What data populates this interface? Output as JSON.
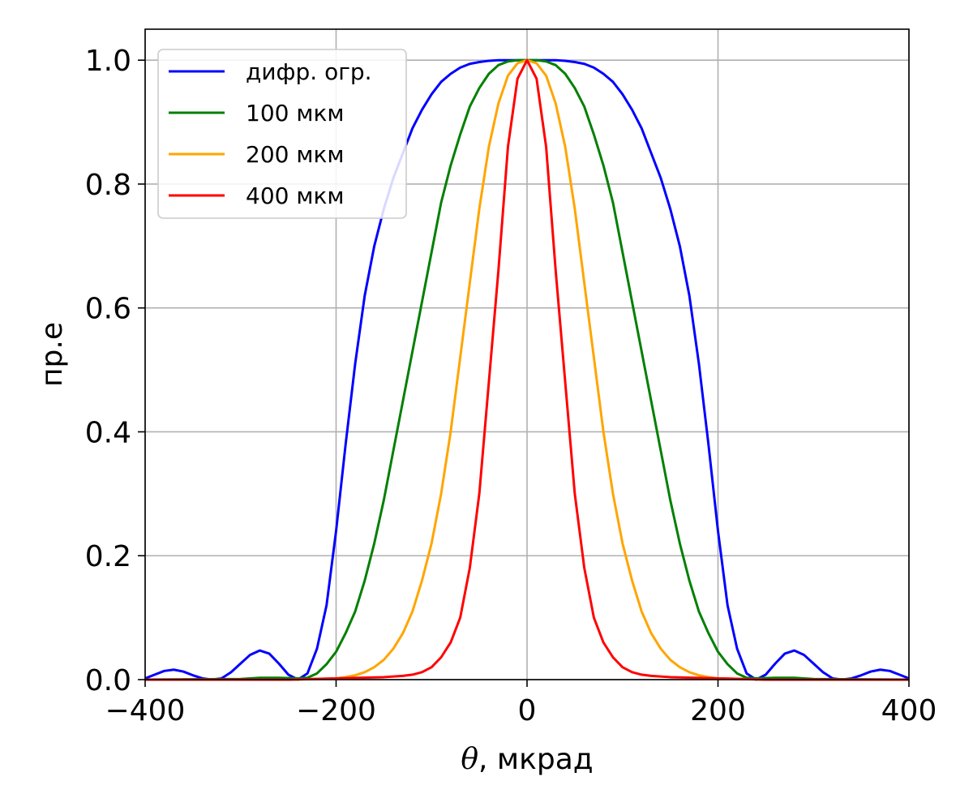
{
  "chart_data": {
    "type": "line",
    "xlabel_symbol": "θ",
    "xlabel_rest": ", мкрад",
    "ylabel": "пр.е",
    "xlim": [
      -400,
      400
    ],
    "ylim": [
      0,
      1.05
    ],
    "xticks": [
      -400,
      -200,
      0,
      200,
      400
    ],
    "xtick_labels": [
      "−400",
      "−200",
      "0",
      "200",
      "400"
    ],
    "yticks": [
      0,
      0.2,
      0.4,
      0.6,
      0.8,
      1.0
    ],
    "ytick_labels": [
      "0.0",
      "0.2",
      "0.4",
      "0.6",
      "0.8",
      "1.0"
    ],
    "grid": true,
    "legend_position": "top-left",
    "series": [
      {
        "name": "дифр. огр.",
        "color": "#0000ff",
        "x": [
          -400,
          -390,
          -380,
          -370,
          -360,
          -350,
          -340,
          -330,
          -320,
          -310,
          -300,
          -290,
          -280,
          -270,
          -260,
          -250,
          -240,
          -230,
          -220,
          -210,
          -200,
          -190,
          -180,
          -170,
          -160,
          -150,
          -140,
          -130,
          -120,
          -110,
          -100,
          -90,
          -80,
          -70,
          -60,
          -50,
          -40,
          -30,
          -20,
          -10,
          0,
          10,
          20,
          30,
          40,
          50,
          60,
          70,
          80,
          90,
          100,
          110,
          120,
          130,
          140,
          150,
          160,
          170,
          180,
          190,
          200,
          210,
          220,
          230,
          240,
          250,
          260,
          270,
          280,
          290,
          300,
          310,
          320,
          330,
          340,
          350,
          360,
          370,
          380,
          390,
          400
        ],
        "y": [
          0.002,
          0.008,
          0.014,
          0.016,
          0.013,
          0.007,
          0.002,
          0.0,
          0.002,
          0.012,
          0.026,
          0.04,
          0.047,
          0.042,
          0.026,
          0.008,
          0.0,
          0.01,
          0.05,
          0.12,
          0.24,
          0.38,
          0.51,
          0.62,
          0.7,
          0.76,
          0.81,
          0.85,
          0.89,
          0.92,
          0.945,
          0.965,
          0.978,
          0.988,
          0.994,
          0.997,
          0.999,
          1.0,
          1.0,
          1.0,
          1.0,
          1.0,
          1.0,
          1.0,
          0.999,
          0.997,
          0.994,
          0.988,
          0.978,
          0.965,
          0.945,
          0.92,
          0.89,
          0.85,
          0.81,
          0.76,
          0.7,
          0.62,
          0.51,
          0.38,
          0.24,
          0.12,
          0.05,
          0.01,
          0.0,
          0.008,
          0.026,
          0.042,
          0.047,
          0.04,
          0.026,
          0.012,
          0.002,
          0.0,
          0.002,
          0.007,
          0.013,
          0.016,
          0.014,
          0.008,
          0.002
        ]
      },
      {
        "name": "100 мкм",
        "color": "#008000",
        "x": [
          -400,
          -300,
          -280,
          -260,
          -240,
          -230,
          -220,
          -210,
          -200,
          -190,
          -180,
          -170,
          -160,
          -150,
          -140,
          -130,
          -120,
          -110,
          -100,
          -90,
          -80,
          -70,
          -60,
          -50,
          -40,
          -30,
          -20,
          -10,
          0,
          10,
          20,
          30,
          40,
          50,
          60,
          70,
          80,
          90,
          100,
          110,
          120,
          130,
          140,
          150,
          160,
          170,
          180,
          190,
          200,
          210,
          220,
          230,
          240,
          260,
          280,
          300,
          400
        ],
        "y": [
          0.0,
          0.001,
          0.003,
          0.003,
          0.002,
          0.003,
          0.01,
          0.025,
          0.045,
          0.075,
          0.11,
          0.16,
          0.22,
          0.29,
          0.37,
          0.45,
          0.53,
          0.61,
          0.69,
          0.77,
          0.83,
          0.88,
          0.925,
          0.955,
          0.978,
          0.992,
          0.998,
          1.0,
          1.0,
          1.0,
          0.998,
          0.992,
          0.978,
          0.955,
          0.925,
          0.88,
          0.83,
          0.77,
          0.69,
          0.61,
          0.53,
          0.45,
          0.37,
          0.29,
          0.22,
          0.16,
          0.11,
          0.075,
          0.045,
          0.025,
          0.01,
          0.003,
          0.002,
          0.003,
          0.003,
          0.001,
          0.0
        ]
      },
      {
        "name": "200 мкм",
        "color": "#ffa500",
        "x": [
          -400,
          -250,
          -200,
          -190,
          -180,
          -170,
          -160,
          -150,
          -140,
          -130,
          -120,
          -110,
          -100,
          -90,
          -80,
          -70,
          -60,
          -50,
          -40,
          -30,
          -20,
          -10,
          0,
          10,
          20,
          30,
          40,
          50,
          60,
          70,
          80,
          90,
          100,
          110,
          120,
          130,
          140,
          150,
          160,
          170,
          180,
          190,
          200,
          250,
          400
        ],
        "y": [
          0.0,
          0.0,
          0.002,
          0.004,
          0.007,
          0.012,
          0.02,
          0.032,
          0.05,
          0.075,
          0.11,
          0.16,
          0.22,
          0.3,
          0.4,
          0.52,
          0.64,
          0.76,
          0.86,
          0.93,
          0.975,
          0.995,
          1.0,
          0.995,
          0.975,
          0.93,
          0.86,
          0.76,
          0.64,
          0.52,
          0.4,
          0.3,
          0.22,
          0.16,
          0.11,
          0.075,
          0.05,
          0.032,
          0.02,
          0.012,
          0.007,
          0.004,
          0.002,
          0.0,
          0.0
        ]
      },
      {
        "name": "400 мкм",
        "color": "#ff0000",
        "x": [
          -400,
          -250,
          -200,
          -150,
          -130,
          -120,
          -110,
          -100,
          -90,
          -80,
          -70,
          -60,
          -50,
          -40,
          -30,
          -20,
          -10,
          0,
          10,
          20,
          30,
          40,
          50,
          60,
          70,
          80,
          90,
          100,
          110,
          120,
          130,
          150,
          200,
          250,
          400
        ],
        "y": [
          0.0,
          0.0,
          0.002,
          0.004,
          0.006,
          0.008,
          0.012,
          0.02,
          0.036,
          0.06,
          0.1,
          0.18,
          0.3,
          0.48,
          0.66,
          0.86,
          0.97,
          1.0,
          0.97,
          0.86,
          0.66,
          0.48,
          0.3,
          0.18,
          0.1,
          0.06,
          0.036,
          0.02,
          0.012,
          0.008,
          0.006,
          0.004,
          0.002,
          0.0,
          0.0
        ]
      }
    ]
  }
}
